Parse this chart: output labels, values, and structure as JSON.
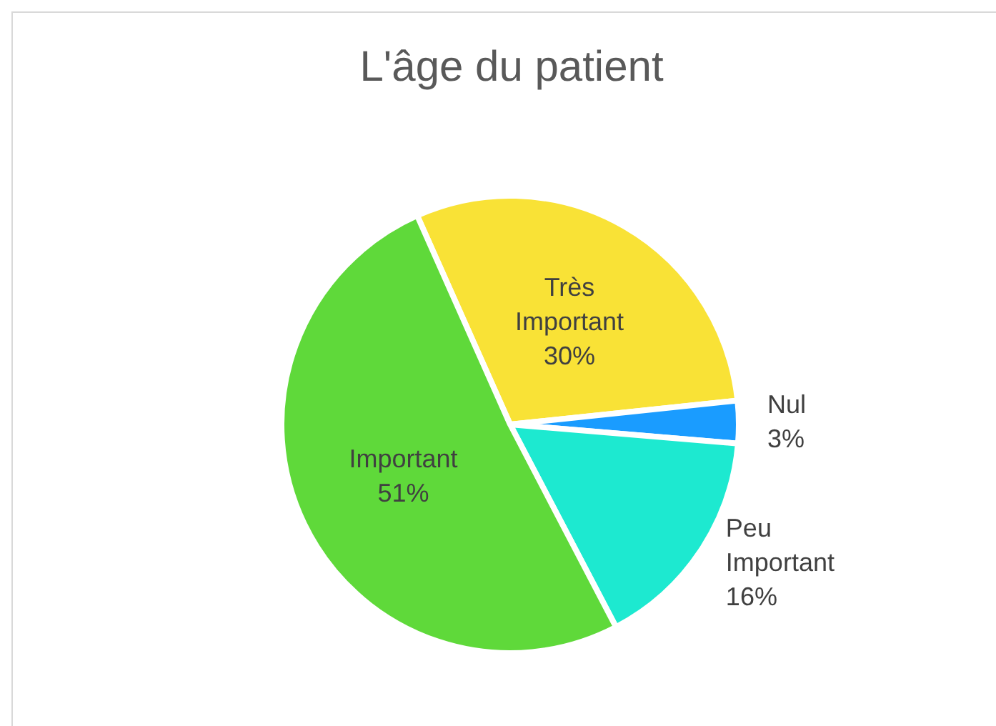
{
  "chart_data": {
    "type": "pie",
    "title": "L'âge du patient",
    "categories": [
      "Très Important",
      "Nul",
      "Peu Important",
      "Important"
    ],
    "values": [
      30,
      3,
      16,
      51
    ],
    "colors": [
      "#f9e236",
      "#1a9cff",
      "#1de9d0",
      "#5fd93a"
    ],
    "value_labels": [
      "30%",
      "3%",
      "16%",
      "51%"
    ],
    "legend": false
  }
}
